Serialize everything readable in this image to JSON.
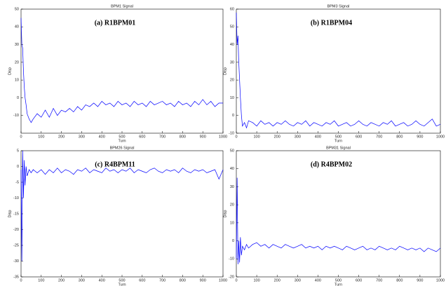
{
  "chart_data": [
    {
      "type": "line",
      "title": "BPM1 Signal",
      "annotation": "(a)  R1BPM01",
      "xlabel": "Turn",
      "ylabel": "Disp",
      "xlim": [
        0,
        1000
      ],
      "xticks": [
        0,
        100,
        200,
        300,
        400,
        500,
        600,
        700,
        800,
        900,
        1000
      ],
      "ylim": [
        -20,
        50
      ],
      "yticks": [
        -10,
        0,
        10,
        20,
        30,
        40,
        50
      ],
      "color": "#0000ff",
      "x": [
        0,
        4,
        8,
        12,
        16,
        20,
        25,
        30,
        40,
        50,
        60,
        80,
        100,
        120,
        140,
        160,
        180,
        200,
        220,
        240,
        260,
        280,
        300,
        320,
        340,
        360,
        380,
        400,
        420,
        440,
        460,
        480,
        500,
        520,
        540,
        560,
        580,
        600,
        620,
        640,
        660,
        680,
        700,
        720,
        740,
        760,
        780,
        800,
        820,
        840,
        860,
        880,
        900,
        920,
        940,
        960,
        980,
        1000
      ],
      "values": [
        45,
        30,
        28,
        15,
        6,
        0,
        -4,
        -9,
        -12,
        -14,
        -12,
        -9,
        -11,
        -7,
        -11,
        -6,
        -10,
        -7,
        -8,
        -6,
        -8,
        -5,
        -7,
        -4,
        -5,
        -3,
        -5,
        -2,
        -4,
        -3,
        -5,
        -2,
        -4,
        -3,
        -5,
        -2,
        -4,
        -3,
        -5,
        -2,
        -4,
        -3,
        -2,
        -4,
        -3,
        -5,
        -2,
        -4,
        -3,
        -5,
        -2,
        -4,
        -1,
        -4,
        -2,
        -5,
        -3,
        -3
      ]
    },
    {
      "type": "line",
      "title": "BPM3 Signal",
      "annotation": "(b)  R1BPM04",
      "xlabel": "Turn",
      "ylabel": "Disp",
      "xlim": [
        0,
        1000
      ],
      "xticks": [
        0,
        100,
        200,
        300,
        400,
        500,
        600,
        700,
        800,
        900,
        1000
      ],
      "ylim": [
        -10,
        60
      ],
      "yticks": [
        -10,
        0,
        10,
        20,
        30,
        40,
        50,
        60
      ],
      "color": "#0000ff",
      "x": [
        0,
        4,
        8,
        12,
        16,
        20,
        25,
        30,
        40,
        50,
        60,
        80,
        100,
        120,
        140,
        160,
        180,
        200,
        220,
        240,
        260,
        280,
        300,
        320,
        340,
        360,
        380,
        400,
        420,
        440,
        460,
        480,
        500,
        520,
        540,
        560,
        580,
        600,
        620,
        640,
        660,
        680,
        700,
        720,
        740,
        760,
        780,
        800,
        820,
        840,
        860,
        880,
        900,
        920,
        940,
        960,
        980,
        1000
      ],
      "values": [
        58,
        40,
        45,
        30,
        20,
        10,
        0,
        -6,
        -4,
        -7,
        -3,
        -4,
        -6,
        -3,
        -5,
        -4,
        -6,
        -4,
        -5,
        -3,
        -5,
        -6,
        -4,
        -5,
        -3,
        -6,
        -4,
        -5,
        -6,
        -4,
        -5,
        -3,
        -6,
        -5,
        -4,
        -6,
        -5,
        -3,
        -5,
        -6,
        -4,
        -5,
        -6,
        -4,
        -5,
        -3,
        -6,
        -5,
        -4,
        -6,
        -5,
        -3,
        -5,
        -6,
        -4,
        -2,
        -6,
        -5
      ]
    },
    {
      "type": "line",
      "title": "BPM26 Signal",
      "annotation": "(c)  R4BPM11",
      "xlabel": "Turn",
      "ylabel": "Disp",
      "xlim": [
        0,
        1000
      ],
      "xticks": [
        0,
        100,
        200,
        300,
        400,
        500,
        600,
        700,
        800,
        900,
        1000
      ],
      "ylim": [
        -35,
        5
      ],
      "yticks": [
        -35,
        -30,
        -25,
        -20,
        -15,
        -10,
        -5,
        0,
        5
      ],
      "color": "#0000ff",
      "x": [
        0,
        4,
        8,
        12,
        16,
        20,
        25,
        30,
        40,
        50,
        60,
        80,
        100,
        120,
        140,
        160,
        180,
        200,
        220,
        240,
        260,
        280,
        300,
        320,
        340,
        360,
        380,
        400,
        420,
        440,
        460,
        480,
        500,
        520,
        540,
        560,
        580,
        600,
        620,
        640,
        660,
        680,
        700,
        720,
        740,
        760,
        780,
        800,
        820,
        840,
        860,
        880,
        900,
        920,
        940,
        960,
        980,
        1000
      ],
      "values": [
        -1,
        -30,
        5,
        -10,
        2,
        -6,
        0,
        -3,
        -1,
        -2,
        -1,
        -2,
        -1,
        -2.5,
        -1,
        -2,
        -0.5,
        -2,
        -1,
        -1.5,
        -2.5,
        -1,
        -1.5,
        -0.5,
        -2,
        -1,
        -1.5,
        -2,
        -0.5,
        -1.5,
        -1,
        -2,
        -1,
        -1.5,
        -0.5,
        -2,
        -1,
        -1.5,
        -2,
        -1,
        -0.5,
        -1.5,
        -2,
        -1,
        -1.5,
        -1,
        -2,
        -0.5,
        -1.5,
        -2,
        -1,
        -1.5,
        -1,
        -2,
        -1.5,
        -1,
        -4,
        -1
      ]
    },
    {
      "type": "line",
      "title": "BPM31 Signal",
      "annotation": "(d)  R4BPM02",
      "xlabel": "Turn",
      "ylabel": "Disp",
      "xlim": [
        0,
        1000
      ],
      "xticks": [
        0,
        100,
        200,
        300,
        400,
        500,
        600,
        700,
        800,
        900,
        1000
      ],
      "ylim": [
        -20,
        50
      ],
      "yticks": [
        -20,
        -10,
        0,
        10,
        20,
        30,
        40,
        50
      ],
      "color": "#0000ff",
      "x": [
        0,
        4,
        8,
        12,
        16,
        20,
        25,
        30,
        40,
        50,
        60,
        80,
        100,
        120,
        140,
        160,
        180,
        200,
        220,
        240,
        260,
        280,
        300,
        320,
        340,
        360,
        380,
        400,
        420,
        440,
        460,
        480,
        500,
        520,
        540,
        560,
        580,
        600,
        620,
        640,
        660,
        680,
        700,
        720,
        740,
        760,
        780,
        800,
        820,
        840,
        860,
        880,
        900,
        920,
        940,
        960,
        980,
        1000
      ],
      "values": [
        -10,
        35,
        -13,
        0,
        -12,
        2,
        -8,
        -3,
        -5,
        -2,
        -4,
        -2,
        -1,
        -3,
        -2,
        -4,
        -2,
        -3,
        -4,
        -2,
        -3,
        -4,
        -3,
        -2,
        -4,
        -3,
        -4,
        -3,
        -5,
        -3,
        -4,
        -3,
        -4,
        -5,
        -3,
        -4,
        -5,
        -4,
        -3,
        -5,
        -4,
        -5,
        -3,
        -4,
        -5,
        -4,
        -5,
        -3,
        -4,
        -5,
        -4,
        -5,
        -4,
        -6,
        -4,
        -5,
        -6,
        -4
      ]
    }
  ]
}
